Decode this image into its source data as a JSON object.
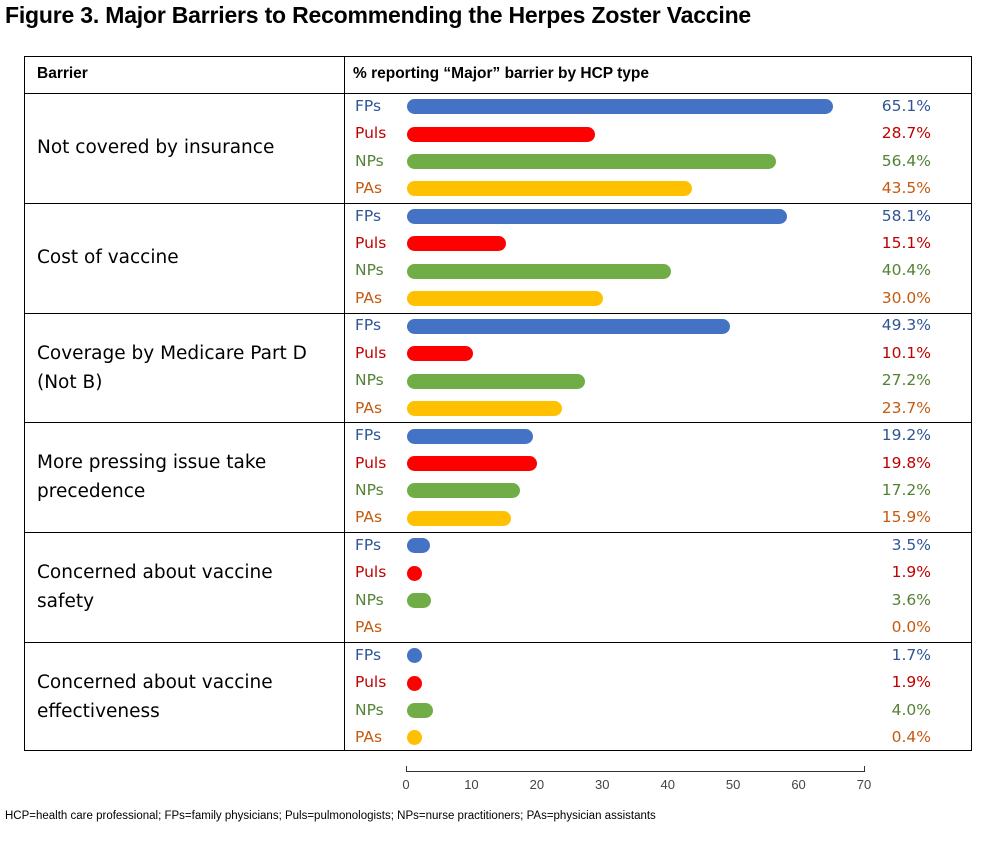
{
  "title": "Figure 3. Major Barriers to Recommending the Herpes Zoster Vaccine",
  "header": {
    "barrier": "Barrier",
    "measure": "% reporting “Major” barrier by HCP type"
  },
  "footnote": "HCP=health care professional; FPs=family physicians; Puls=pulmonologists; NPs=nurse practitioners; PAs=physician assistants",
  "colors": {
    "FPs": "#4472c4",
    "Puls": "#ff0000",
    "NPs": "#70ad47",
    "PAs": "#ffc000"
  },
  "label_colors": {
    "FPs": "#2f5597",
    "Puls": "#c00000",
    "NPs": "#548235",
    "PAs": "#c55a11"
  },
  "chart_data": {
    "type": "bar",
    "orientation": "horizontal",
    "title": "Figure 3. Major Barriers to Recommending the Herpes Zoster Vaccine",
    "categories": [
      [
        "Not covered by insurance"
      ],
      [
        "Cost of vaccine"
      ],
      [
        "Coverage by Medicare Part D",
        "(Not B)"
      ],
      [
        "More pressing issue take",
        "precedence"
      ],
      [
        "Concerned about vaccine",
        "safety"
      ],
      [
        "Concerned about vaccine",
        "effectiveness"
      ]
    ],
    "series": [
      {
        "name": "FPs",
        "values": [
          65.1,
          58.1,
          49.3,
          19.2,
          3.5,
          1.7
        ],
        "labels": [
          "65.1%",
          "58.1%",
          "49.3%",
          "19.2%",
          "3.5%",
          "1.7%"
        ]
      },
      {
        "name": "Puls",
        "values": [
          28.7,
          15.1,
          10.1,
          19.8,
          1.9,
          1.9
        ],
        "labels": [
          "28.7%",
          "15.1%",
          "10.1%",
          "19.8%",
          "1.9%",
          "1.9%"
        ]
      },
      {
        "name": "NPs",
        "values": [
          56.4,
          40.4,
          27.2,
          17.2,
          3.6,
          4.0
        ],
        "labels": [
          "56.4%",
          "40.4%",
          "27.2%",
          "17.2%",
          "3.6%",
          "4.0%"
        ]
      },
      {
        "name": "PAs",
        "values": [
          43.5,
          30.0,
          23.7,
          15.9,
          0.0,
          0.4
        ],
        "labels": [
          "43.5%",
          "30.0%",
          "23.7%",
          "15.9%",
          "0.0%",
          "0.4%"
        ]
      }
    ],
    "xlim": [
      0,
      70
    ],
    "xticks": [
      "0",
      "10",
      "20",
      "30",
      "40",
      "50",
      "60",
      "70"
    ],
    "grid": false,
    "legend": "none"
  }
}
